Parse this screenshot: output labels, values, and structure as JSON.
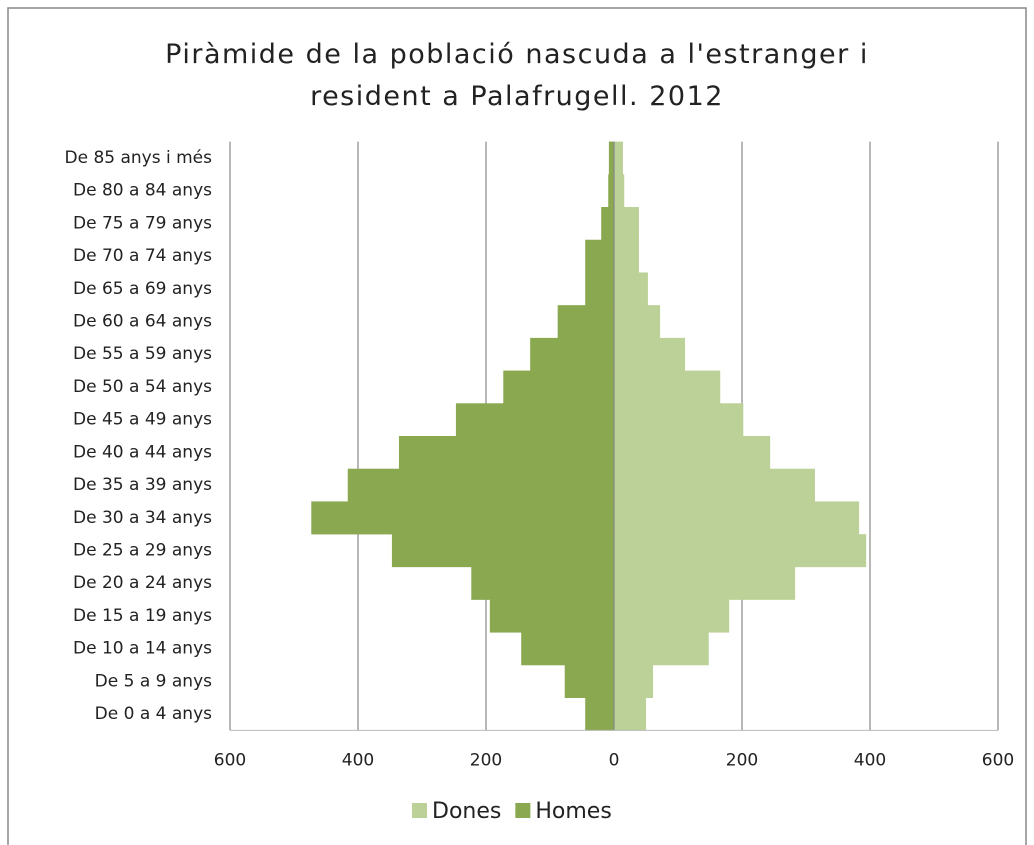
{
  "chart_data": {
    "type": "pyramid",
    "title": "Piràmide de la població nascuda a l'estranger i resident a Palafrugell. 2012",
    "categories": [
      "De 0 a 4 anys",
      "De 5 a 9 anys",
      "De 10 a 14 anys",
      "De 15 a 19 anys",
      "De 20 a 24 anys",
      "De 25 a 29 anys",
      "De 30 a 34 anys",
      "De 35 a 39 anys",
      "De 40 a 44 anys",
      "De 45 a 49 anys",
      "De 50 a 54 anys",
      "De 55 a 59 anys",
      "De 60 a 64 anys",
      "De 65 a 69 anys",
      "De 70 a 74 anys",
      "De 75 a 79 anys",
      "De 80 a 84 anys",
      "De 85 anys i més"
    ],
    "series": [
      {
        "name": "Dones",
        "color": "#bcd198",
        "values": [
          50,
          61,
          148,
          180,
          283,
          394,
          383,
          314,
          244,
          202,
          166,
          111,
          72,
          53,
          39,
          39,
          16,
          14
        ]
      },
      {
        "name": "Homes",
        "color": "#8aa84f",
        "values": [
          -45,
          -77,
          -145,
          -194,
          -223,
          -347,
          -473,
          -416,
          -336,
          -247,
          -173,
          -131,
          -88,
          -45,
          -45,
          -20,
          -9,
          -8
        ]
      }
    ],
    "xlim": [
      -600,
      600
    ],
    "xticks": [
      {
        "value": -600,
        "label": "600"
      },
      {
        "value": -400,
        "label": "400"
      },
      {
        "value": -200,
        "label": "200"
      },
      0,
      200,
      400,
      600
    ],
    "grid": true,
    "legend": "bottom"
  }
}
